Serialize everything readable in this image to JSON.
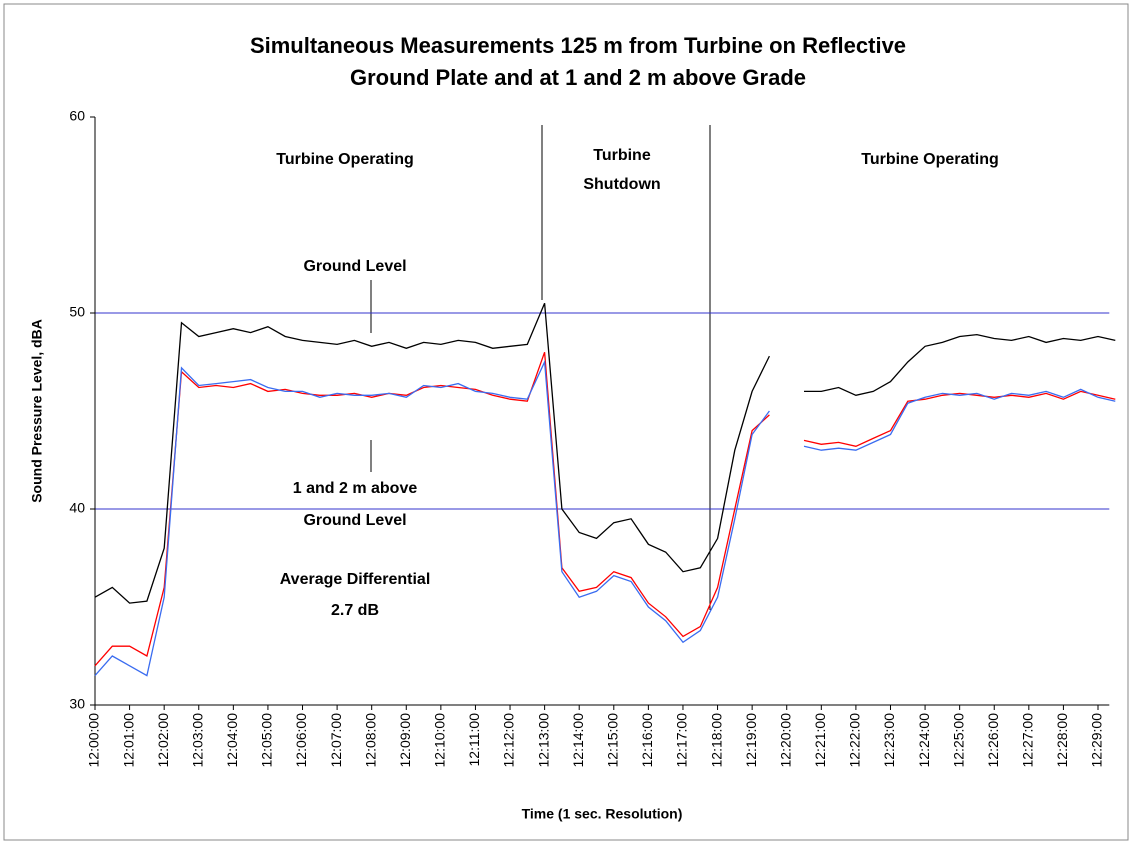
{
  "chart_data": {
    "type": "line",
    "title": [
      "Simultaneous Measurements 125 m from Turbine on Reflective",
      "Ground Plate and at 1 and 2 m above Grade"
    ],
    "x_label": "Time (1 sec. Resolution)",
    "y_label": "Sound Pressure Level, dBA",
    "categories": [
      "12:00:00",
      null,
      "12:01:00",
      null,
      "12:02:00",
      null,
      "12:03:00",
      null,
      "12:04:00",
      null,
      "12:05:00",
      null,
      "12:06:00",
      null,
      "12:07:00",
      null,
      "12:08:00",
      null,
      "12:09:00",
      null,
      "12:10:00",
      null,
      "12:11:00",
      null,
      "12:12:00",
      null,
      "12:13:00",
      null,
      "12:14:00",
      null,
      "12:15:00",
      null,
      "12:16:00",
      null,
      "12:17:00",
      null,
      "12:18:00",
      null,
      "12:19:00",
      null,
      "12:20:00",
      null,
      "12:21:00",
      null,
      "12:22:00",
      null,
      "12:23:00",
      null,
      "12:24:00",
      null,
      "12:25:00",
      null,
      "12:26:00",
      null,
      "12:27:00",
      null,
      "12:28:00",
      null,
      "12:29:00",
      null
    ],
    "series": [
      {
        "color": "#000000",
        "values": [
          35.5,
          36,
          35.2,
          35.3,
          38,
          49.5,
          48.8,
          49,
          49.2,
          49,
          49.3,
          48.8,
          48.6,
          48.5,
          48.4,
          48.6,
          48.3,
          48.5,
          48.2,
          48.5,
          48.4,
          48.6,
          48.5,
          48.2,
          48.3,
          48.4,
          50.5,
          40,
          38.8,
          38.5,
          39.3,
          39.5,
          38.2,
          37.8,
          36.8,
          37,
          38.5,
          43,
          46,
          47.8,
          null,
          46,
          46,
          46.2,
          45.8,
          46,
          46.5,
          47.5,
          48.3,
          48.5,
          48.8,
          48.9,
          48.7,
          48.6,
          48.8,
          48.5,
          48.7,
          48.6,
          48.8,
          48.6
        ]
      },
      {
        "color": "#ff0000",
        "values": [
          32,
          33,
          33,
          32.5,
          36,
          47,
          46.2,
          46.3,
          46.2,
          46.4,
          46,
          46.1,
          45.9,
          45.8,
          45.8,
          45.9,
          45.7,
          45.9,
          45.8,
          46.2,
          46.3,
          46.2,
          46.1,
          45.8,
          45.6,
          45.5,
          48,
          37,
          35.8,
          36,
          36.8,
          36.5,
          35.2,
          34.5,
          33.5,
          34,
          36,
          40,
          44,
          44.8,
          null,
          43.5,
          43.3,
          43.4,
          43.2,
          43.6,
          44,
          45.5,
          45.6,
          45.8,
          45.9,
          45.8,
          45.7,
          45.8,
          45.7,
          45.9,
          45.6,
          46,
          45.8,
          45.6
        ]
      },
      {
        "color": "#3a6cf0",
        "values": [
          31.5,
          32.5,
          32,
          31.5,
          35.5,
          47.2,
          46.3,
          46.4,
          46.5,
          46.6,
          46.2,
          46.0,
          46.0,
          45.7,
          45.9,
          45.8,
          45.8,
          45.9,
          45.7,
          46.3,
          46.2,
          46.4,
          46.0,
          45.9,
          45.7,
          45.6,
          47.5,
          36.8,
          35.5,
          35.8,
          36.6,
          36.3,
          35,
          34.3,
          33.2,
          33.8,
          35.5,
          39.5,
          43.8,
          45,
          null,
          43.2,
          43,
          43.1,
          43,
          43.4,
          43.8,
          45.4,
          45.7,
          45.9,
          45.8,
          45.9,
          45.6,
          45.9,
          45.8,
          46,
          45.7,
          46.1,
          45.7,
          45.5
        ]
      }
    ],
    "ylim": [
      30,
      60
    ],
    "yticks": [
      30,
      40,
      50,
      60
    ],
    "grid": true,
    "grid_color": "#3333cc",
    "annotations": [
      "Turbine Operating",
      "Turbine",
      "Shutdown",
      "Turbine Operating",
      "Ground Level",
      "1 and 2 m above",
      "Ground Level",
      "Average Differential",
      "2.7 dB"
    ]
  }
}
